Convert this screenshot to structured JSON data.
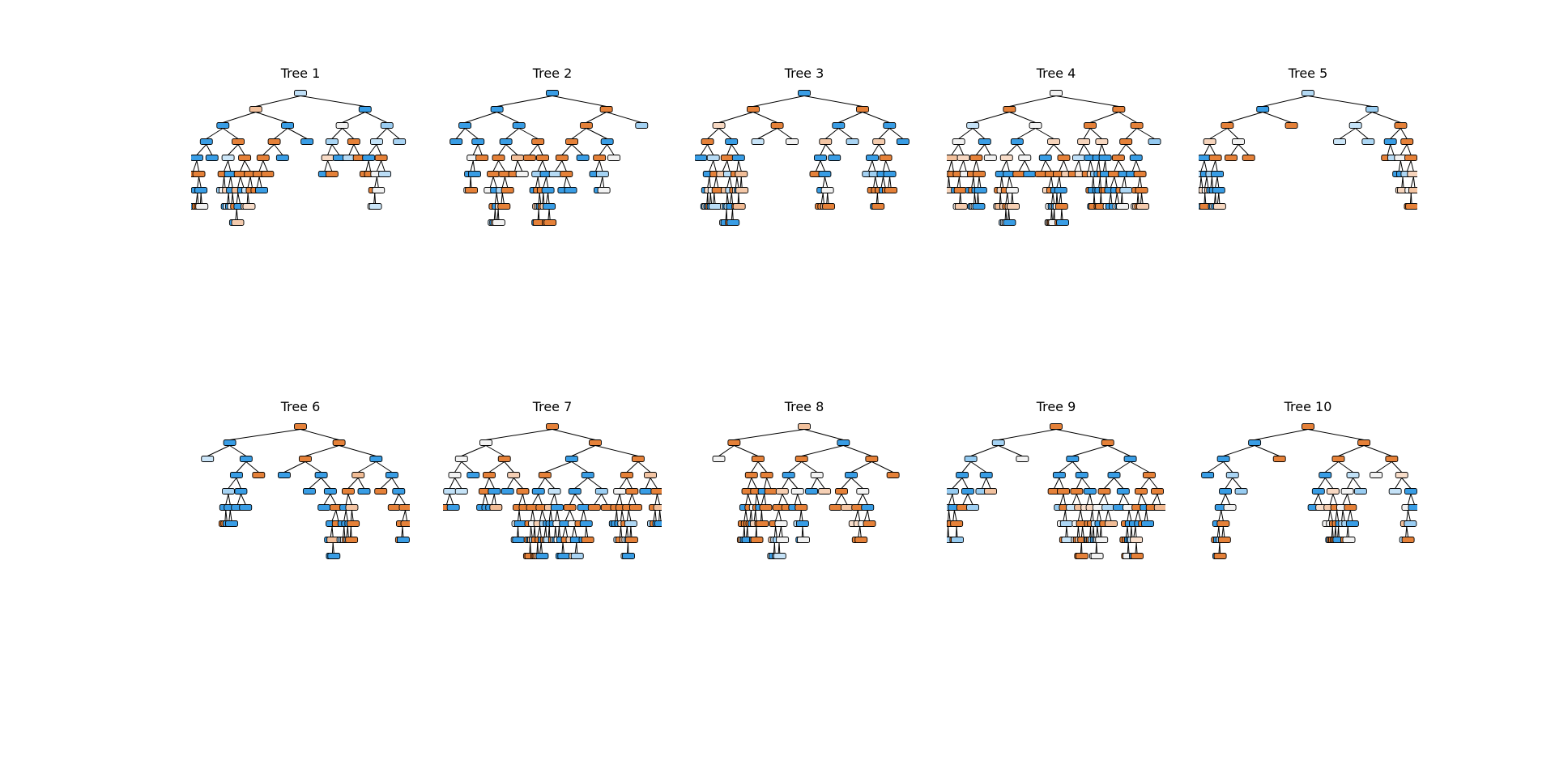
{
  "figure": {
    "node_colors": {
      "class_a": "#e58139",
      "class_b": "#399de5",
      "mixed": "#f2f2f2"
    },
    "panels": [
      {
        "title": "Tree 1",
        "max_depth": 18
      },
      {
        "title": "Tree 2",
        "max_depth": 17
      },
      {
        "title": "Tree 3",
        "max_depth": 14
      },
      {
        "title": "Tree 4",
        "max_depth": 14
      },
      {
        "title": "Tree 5",
        "max_depth": 18
      },
      {
        "title": "Tree 6",
        "max_depth": 16
      },
      {
        "title": "Tree 7",
        "max_depth": 17
      },
      {
        "title": "Tree 8",
        "max_depth": 13
      },
      {
        "title": "Tree 9",
        "max_depth": 13
      },
      {
        "title": "Tree 10",
        "max_depth": 17
      }
    ]
  }
}
